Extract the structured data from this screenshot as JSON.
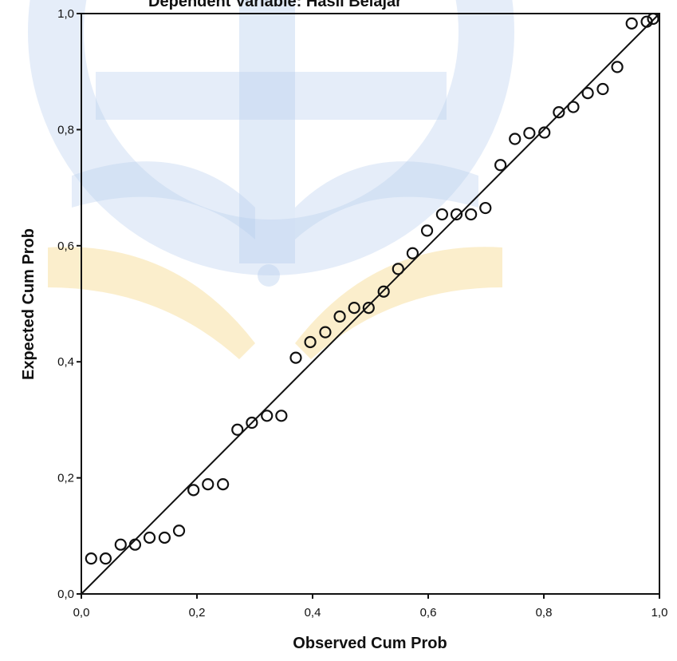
{
  "chart_data": {
    "type": "scatter",
    "title": "Dependent Variable: Hasil Belajar",
    "xlabel": "Observed Cum Prob",
    "ylabel": "Expected Cum Prob",
    "xlim": [
      0,
      1
    ],
    "ylim": [
      0,
      1
    ],
    "xticks": [
      "0,0",
      "0,2",
      "0,4",
      "0,6",
      "0,8",
      "1,0"
    ],
    "yticks": [
      "0,0",
      "0,2",
      "0,4",
      "0,6",
      "0,8",
      "1,0"
    ],
    "grid": false,
    "reference_line": {
      "from": [
        0,
        0
      ],
      "to": [
        1,
        1
      ]
    },
    "x": [
      0.017,
      0.042,
      0.068,
      0.093,
      0.118,
      0.144,
      0.169,
      0.194,
      0.219,
      0.245,
      0.27,
      0.295,
      0.321,
      0.346,
      0.371,
      0.396,
      0.422,
      0.447,
      0.472,
      0.497,
      0.523,
      0.548,
      0.573,
      0.598,
      0.624,
      0.649,
      0.674,
      0.699,
      0.725,
      0.75,
      0.775,
      0.801,
      0.826,
      0.851,
      0.876,
      0.902,
      0.927,
      0.952,
      0.978,
      0.989
    ],
    "y": [
      0.061,
      0.061,
      0.085,
      0.085,
      0.097,
      0.097,
      0.109,
      0.179,
      0.189,
      0.189,
      0.283,
      0.295,
      0.307,
      0.307,
      0.407,
      0.434,
      0.451,
      0.478,
      0.493,
      0.493,
      0.521,
      0.56,
      0.587,
      0.626,
      0.654,
      0.654,
      0.654,
      0.665,
      0.739,
      0.784,
      0.794,
      0.795,
      0.83,
      0.839,
      0.863,
      0.87,
      0.908,
      0.983,
      0.986,
      0.991
    ],
    "colors": {
      "points": "#111111",
      "line": "#111111",
      "axes": "#111111",
      "watermark_blue": "#5b8fd6",
      "watermark_yellow": "#f3d47a"
    }
  }
}
